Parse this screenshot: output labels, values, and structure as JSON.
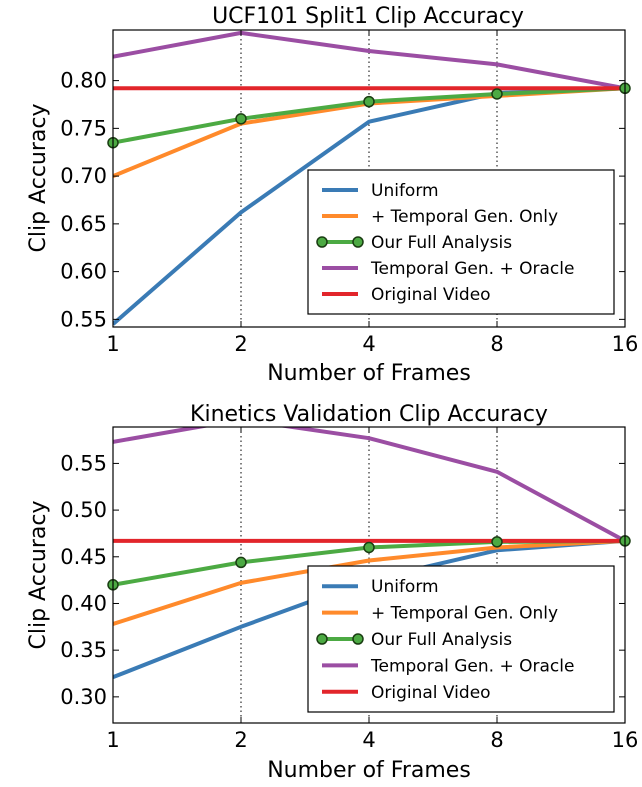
{
  "chart_data": [
    {
      "type": "line",
      "title": "UCF101 Split1 Clip Accuracy",
      "xlabel": "Number of Frames",
      "ylabel": "Clip Accuracy",
      "x_scale": "log2",
      "x": [
        1,
        2,
        4,
        8,
        16
      ],
      "x_ticks": [
        "1",
        "2",
        "4",
        "8",
        "16"
      ],
      "ylim": [
        0.542,
        0.853
      ],
      "y_ticks": [
        "0.55",
        "0.60",
        "0.65",
        "0.70",
        "0.75",
        "0.80"
      ],
      "grid": "vertical dotted at x ticks",
      "legend_position": "lower right",
      "series": [
        {
          "name": "Uniform",
          "color": "#3a7bb5",
          "marker": false,
          "values": [
            0.545,
            0.662,
            0.757,
            0.787,
            0.792
          ]
        },
        {
          "name": "+ Temporal Gen. Only",
          "color": "#ff8a2b",
          "marker": false,
          "values": [
            0.7,
            0.755,
            0.776,
            0.784,
            0.792
          ]
        },
        {
          "name": "Our Full Analysis",
          "color": "#4caa43",
          "marker": true,
          "values": [
            0.735,
            0.76,
            0.778,
            0.786,
            0.792
          ]
        },
        {
          "name": "Temporal Gen. + Oracle",
          "color": "#9b4ea3",
          "marker": false,
          "values": [
            0.825,
            0.85,
            0.831,
            0.817,
            0.792
          ]
        },
        {
          "name": "Original Video",
          "color": "#e2252b",
          "marker": false,
          "values": [
            0.792,
            0.792,
            0.792,
            0.792,
            0.792
          ]
        }
      ]
    },
    {
      "type": "line",
      "title": "Kinetics Validation Clip Accuracy",
      "xlabel": "Number of Frames",
      "ylabel": "Clip Accuracy",
      "x_scale": "log2",
      "x": [
        1,
        2,
        4,
        8,
        16
      ],
      "x_ticks": [
        "1",
        "2",
        "4",
        "8",
        "16"
      ],
      "ylim": [
        0.272,
        0.589
      ],
      "y_ticks": [
        "0.30",
        "0.35",
        "0.40",
        "0.45",
        "0.50",
        "0.55"
      ],
      "grid": "vertical dotted at x ticks",
      "legend_position": "lower right",
      "series": [
        {
          "name": "Uniform",
          "color": "#3a7bb5",
          "marker": false,
          "values": [
            0.321,
            0.375,
            0.425,
            0.457,
            0.467
          ]
        },
        {
          "name": "+ Temporal Gen. Only",
          "color": "#ff8a2b",
          "marker": false,
          "values": [
            0.378,
            0.422,
            0.446,
            0.46,
            0.467
          ]
        },
        {
          "name": "Our Full Analysis",
          "color": "#4caa43",
          "marker": true,
          "values": [
            0.42,
            0.444,
            0.46,
            0.466,
            0.467
          ]
        },
        {
          "name": "Temporal Gen. + Oracle",
          "color": "#9b4ea3",
          "marker": false,
          "values": [
            0.573,
            0.597,
            0.577,
            0.541,
            0.467
          ]
        },
        {
          "name": "Original Video",
          "color": "#e2252b",
          "marker": false,
          "values": [
            0.467,
            0.467,
            0.467,
            0.467,
            0.467
          ]
        }
      ]
    }
  ]
}
